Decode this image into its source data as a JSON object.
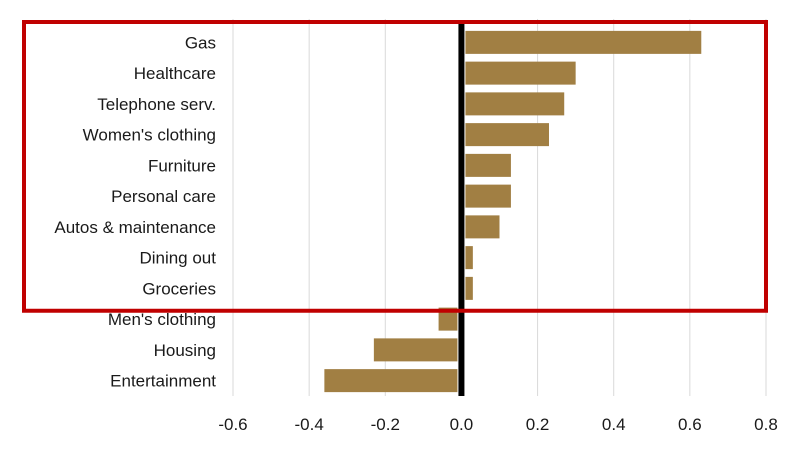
{
  "chart_data": {
    "type": "bar",
    "orientation": "horizontal",
    "title": "",
    "xlabel": "",
    "ylabel": "",
    "categories": [
      "Gas",
      "Healthcare",
      "Telephone serv.",
      "Women's clothing",
      "Furniture",
      "Personal care",
      "Autos & maintenance",
      "Dining out",
      "Groceries",
      "Men's clothing",
      "Housing",
      "Entertainment"
    ],
    "values": [
      0.63,
      0.3,
      0.27,
      0.23,
      0.13,
      0.13,
      0.1,
      0.03,
      0.03,
      -0.06,
      -0.23,
      -0.36
    ],
    "xlim": [
      -0.6,
      0.8
    ],
    "xticks": [
      "-0.6",
      "-0.4",
      "-0.2",
      "0.0",
      "0.2",
      "0.4",
      "0.6",
      "0.8"
    ],
    "grid": "vertical",
    "legend": "none",
    "highlight_box_categories": [
      "Gas",
      "Healthcare",
      "Telephone serv.",
      "Women's clothing",
      "Furniture",
      "Personal care",
      "Autos & maintenance",
      "Dining out",
      "Groceries"
    ]
  },
  "colors": {
    "bar": "#A17F43",
    "zero_line": "#000000",
    "grid": "#d9d9d9",
    "highlight_box": "#c00000",
    "text": "#1a1a1a"
  }
}
